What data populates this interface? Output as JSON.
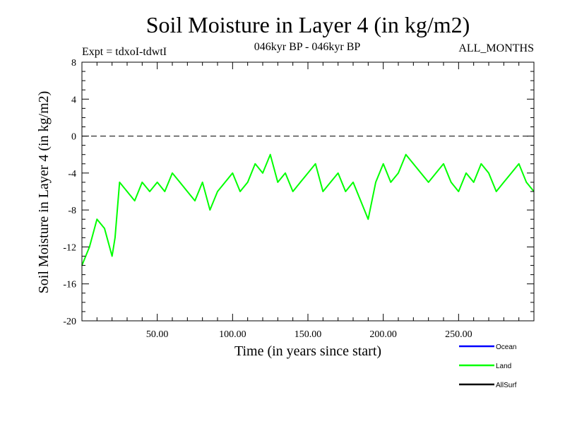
{
  "chart_data": {
    "type": "line",
    "title": "Soil Moisture in Layer 4 (in kg/m2)",
    "subtitle_left": "Expt = tdxoI-tdwtI",
    "subtitle_center": "046kyr BP - 046kyr BP",
    "subtitle_right": "ALL_MONTHS",
    "xlabel": "Time (in years since start)",
    "ylabel": "Soil Moisture in Layer 4 (in kg/m2)",
    "xlim": [
      0,
      300
    ],
    "ylim": [
      -20,
      8
    ],
    "x_ticks": [
      {
        "value": 50,
        "label": "50.00"
      },
      {
        "value": 100,
        "label": "100.00"
      },
      {
        "value": 150,
        "label": "150.00"
      },
      {
        "value": 200,
        "label": "200.00"
      },
      {
        "value": 250,
        "label": "250.00"
      }
    ],
    "y_ticks": [
      {
        "value": 8,
        "label": "8"
      },
      {
        "value": 4,
        "label": "4"
      },
      {
        "value": 0,
        "label": "0"
      },
      {
        "value": -4,
        "label": "-4"
      },
      {
        "value": -8,
        "label": "-8"
      },
      {
        "value": -12,
        "label": "-12"
      },
      {
        "value": -16,
        "label": "-16"
      },
      {
        "value": -20,
        "label": "-20"
      }
    ],
    "reference_line": {
      "y": 0,
      "style": "dashed"
    },
    "legend": {
      "placement": "bottom-right",
      "entries": [
        {
          "name": "Ocean",
          "color": "#0000ff"
        },
        {
          "name": "Land",
          "color": "#00ff00"
        },
        {
          "name": "AllSurf",
          "color": "#000000"
        }
      ]
    },
    "series": [
      {
        "name": "Land",
        "color": "#00ff00",
        "x": [
          0,
          5,
          10,
          15,
          20,
          22,
          25,
          30,
          35,
          40,
          45,
          50,
          55,
          60,
          65,
          70,
          75,
          80,
          85,
          90,
          95,
          100,
          105,
          110,
          115,
          120,
          125,
          130,
          135,
          140,
          145,
          150,
          155,
          160,
          165,
          170,
          175,
          180,
          185,
          190,
          195,
          200,
          205,
          210,
          215,
          220,
          225,
          230,
          235,
          240,
          245,
          250,
          255,
          260,
          265,
          270,
          275,
          280,
          285,
          290,
          295,
          300
        ],
        "y": [
          -14,
          -12,
          -9,
          -10,
          -13,
          -11,
          -5,
          -6,
          -7,
          -5,
          -6,
          -5,
          -6,
          -4,
          -5,
          -6,
          -7,
          -5,
          -8,
          -6,
          -5,
          -4,
          -6,
          -5,
          -3,
          -4,
          -2,
          -5,
          -4,
          -6,
          -5,
          -4,
          -3,
          -6,
          -5,
          -4,
          -6,
          -5,
          -7,
          -9,
          -5,
          -3,
          -5,
          -4,
          -2,
          -3,
          -4,
          -5,
          -4,
          -3,
          -5,
          -6,
          -4,
          -5,
          -3,
          -4,
          -6,
          -5,
          -4,
          -3,
          -5,
          -6
        ]
      }
    ]
  }
}
